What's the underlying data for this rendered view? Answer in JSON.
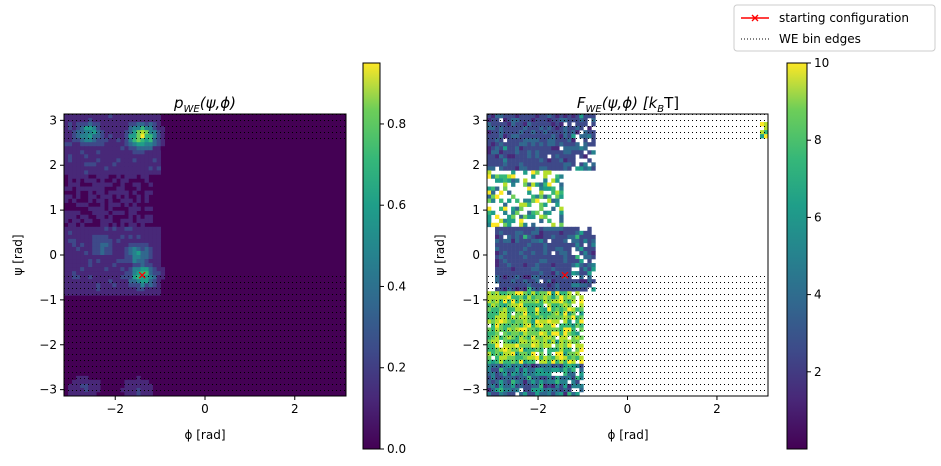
{
  "legend": {
    "items": [
      {
        "label": "starting configuration",
        "color": "#ff0000",
        "style": "solid-line-with-x-marker"
      },
      {
        "label": "WE bin edges",
        "color": "#000000",
        "style": "dotted-line"
      }
    ],
    "placement": "top-right"
  },
  "chart_data": [
    {
      "type": "heatmap",
      "title": "p_WE(ψ,ϕ)",
      "title_parts": {
        "base": "p",
        "sub": "WE",
        "args": "(ψ,ϕ)"
      },
      "xlabel": "ϕ [rad]",
      "ylabel": "ψ [rad]",
      "xlim": [
        -3.1416,
        3.1416
      ],
      "ylim": [
        -3.1416,
        3.1416
      ],
      "xticks": [
        "−2",
        "0",
        "2"
      ],
      "yticks": [
        "3",
        "2",
        "1",
        "0",
        "−1",
        "−2",
        "−3"
      ],
      "colormap": "viridis",
      "colorbar": {
        "min": 0.0,
        "max": 0.95,
        "ticks": [
          "0.0",
          "0.2",
          "0.4",
          "0.6",
          "0.8"
        ]
      },
      "hotspots": [
        {
          "phi": -2.6,
          "psi": 2.7,
          "value": 0.5
        },
        {
          "phi": -1.4,
          "psi": 2.65,
          "value": 0.85
        },
        {
          "phi": -2.3,
          "psi": 0.2,
          "value": 0.3
        },
        {
          "phi": -1.5,
          "psi": 0.0,
          "value": 0.45
        },
        {
          "phi": -1.4,
          "psi": -0.45,
          "value": 0.6
        },
        {
          "phi": -2.7,
          "psi": -3.0,
          "value": 0.18
        },
        {
          "phi": -1.5,
          "psi": -3.0,
          "value": 0.15
        }
      ],
      "starting_configuration": {
        "phi": -1.4,
        "psi": -0.45
      },
      "bin_edge_regions": [
        {
          "phi_range": [
            -3.1416,
            3.1416
          ],
          "psi_range": [
            -3.1416,
            -0.4
          ]
        },
        {
          "phi_range": [
            -3.1416,
            3.1416
          ],
          "psi_range": [
            2.55,
            3.1416
          ]
        }
      ]
    },
    {
      "type": "heatmap",
      "title": "F_WE(ψ,ϕ) [k_BT]",
      "title_parts": {
        "base": "F",
        "sub": "WE",
        "args": "(ψ,ϕ) [",
        "unit_base": "k",
        "unit_sub": "B",
        "unit_rest": "T]"
      },
      "xlabel": "ϕ [rad]",
      "ylabel": "ψ [rad]",
      "xlim": [
        -3.1416,
        3.1416
      ],
      "ylim": [
        -3.1416,
        3.1416
      ],
      "xticks": [
        "−2",
        "0",
        "2"
      ],
      "yticks": [
        "3",
        "2",
        "1",
        "0",
        "−1",
        "−2",
        "−3"
      ],
      "colormap": "viridis",
      "colorbar": {
        "min": 0.0,
        "max": 10,
        "ticks": [
          "2",
          "4",
          "6",
          "8",
          "10"
        ]
      },
      "regions": [
        {
          "phi_range": [
            -3.1,
            -0.7
          ],
          "psi_range": [
            1.9,
            3.1416
          ],
          "value": 1.5
        },
        {
          "phi_range": [
            -3.0,
            -0.7
          ],
          "psi_range": [
            -0.8,
            0.6
          ],
          "value": 1.5
        },
        {
          "phi_range": [
            -3.1,
            -1.4
          ],
          "psi_range": [
            0.6,
            1.9
          ],
          "value": 7
        },
        {
          "phi_range": [
            -3.1,
            -1.0
          ],
          "psi_range": [
            -2.4,
            -0.8
          ],
          "value": 9
        },
        {
          "phi_range": [
            -3.1,
            -1.0
          ],
          "psi_range": [
            -3.1416,
            -2.4
          ],
          "value": 4
        }
      ],
      "starting_configuration": {
        "phi": -1.4,
        "psi": -0.45
      },
      "bin_edge_regions": [
        {
          "phi_range": [
            -3.1416,
            3.1416
          ],
          "psi_range": [
            -3.1416,
            -0.4
          ]
        },
        {
          "phi_range": [
            -3.1416,
            3.1416
          ],
          "psi_range": [
            2.55,
            3.1416
          ]
        }
      ]
    }
  ]
}
